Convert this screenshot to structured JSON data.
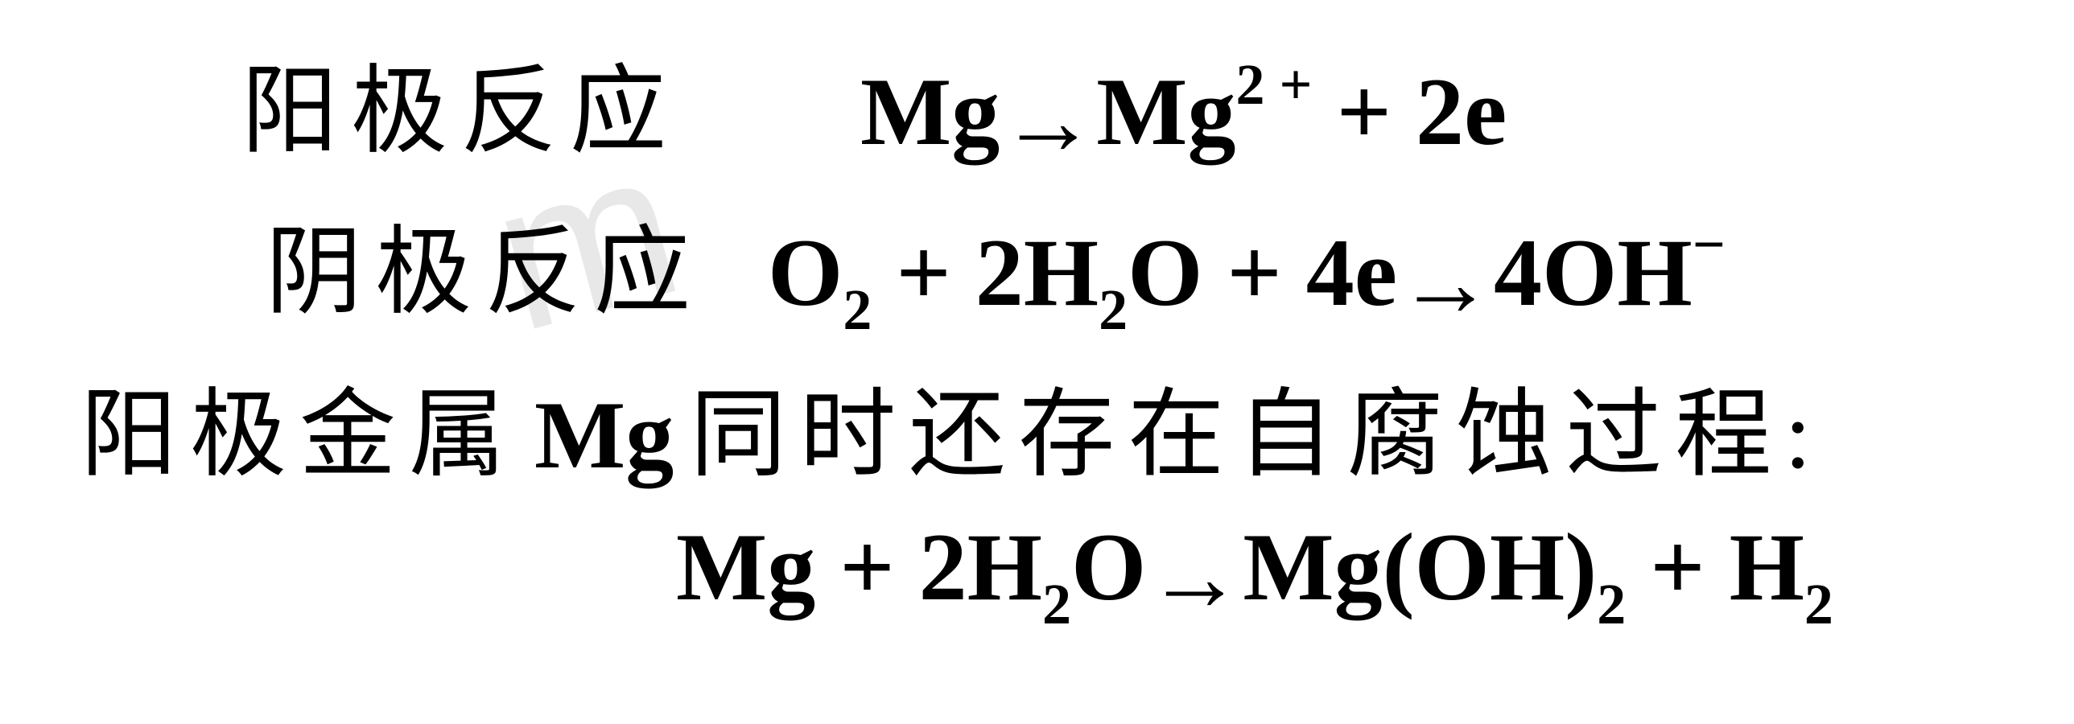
{
  "line1": {
    "label": "阳极反应",
    "eq": {
      "p1": "Mg",
      "p2": "Mg",
      "p3": " + 2e",
      "sup_compound": "2 +"
    }
  },
  "line2": {
    "label": "阴极反应",
    "eq": {
      "p1": "O",
      "p2": " + 2H",
      "p3": "O + 4e",
      "p4": "4OH",
      "sub2_a": "2",
      "sub2_b": "2",
      "sup_minus": "−"
    }
  },
  "line3": {
    "text_before": "阳极金属",
    "mg": "Mg",
    "text_after": "同时还存在自腐蚀过程",
    "colon": ":"
  },
  "line4": {
    "eq": {
      "p1": "Mg + 2H",
      "p2": "O",
      "p3": "Mg(OH)",
      "p4": " + H",
      "sub2_a": "2",
      "sub2_b": "2",
      "sub2_c": "2"
    }
  },
  "watermark": {
    "wm1": "m",
    "wm2": "u"
  },
  "colors": {
    "text": "#000000",
    "background": "#ffffff",
    "watermark": "#e8e8e8"
  }
}
